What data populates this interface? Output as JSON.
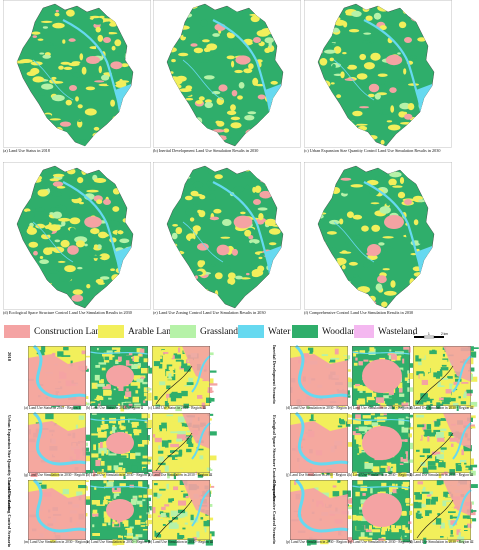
{
  "colors": {
    "construction": "#f4a3a3",
    "arable": "#f2ef5b",
    "grassland": "#b6f2a8",
    "water": "#66d9f0",
    "woodland": "#2fae6b",
    "wasteland": "#f4b8f0"
  },
  "top_maps": [
    {
      "caption": "(a) Land Use Status in 2018"
    },
    {
      "caption": "(b) Inertial Development Land Use Simulation Results in 2030"
    },
    {
      "caption": "(c) Urban Expansion Size Quantity Control Land Use Simulation Results in 2030"
    },
    {
      "caption": "(d) Ecological Space Structure Control Land Use Simulation Results in 2030"
    },
    {
      "caption": "(e) Land Use Zoning Control Land Use Simulation Results in 2030"
    },
    {
      "caption": "(f) Comprehensive Control Land Use Simulation Results in 2030"
    }
  ],
  "legend": [
    {
      "label": "Construction Land",
      "color": "#f4a3a3"
    },
    {
      "label": "Arable Land",
      "color": "#f2ef5b"
    },
    {
      "label": "Grassland",
      "color": "#b6f2a8"
    },
    {
      "label": "Water",
      "color": "#66d9f0"
    },
    {
      "label": "Woodland",
      "color": "#2fae6b"
    },
    {
      "label": "Wasteland",
      "color": "#f4b8f0"
    }
  ],
  "scale": {
    "zero": "0",
    "mid": "1",
    "end": "2 km"
  },
  "side_labels": [
    "2018",
    "Inertial Development Scenario",
    "Urban Expansion Size Quantity Control Scenario",
    "Ecological Space Structure Control Scenario",
    "Land Use Zoning Control Scenario",
    "Comprehensive Control Scenario"
  ],
  "tiles": [
    {
      "caption": "(a) Land Use Status in 2018 - Region Ⅰ"
    },
    {
      "caption": "(b) Land Use Status in 2018 - Region Ⅱ"
    },
    {
      "caption": "(c) Land Use Status in 2018 - Region Ⅲ"
    },
    {
      "caption": "(d) Land Use Simulation in 2030 - Region Ⅰ"
    },
    {
      "caption": "(e) Land Use Simulation in 2030 - Region Ⅱ"
    },
    {
      "caption": "(f) Land Use Simulation in 2030 - Region Ⅲ"
    },
    {
      "caption": "(g) Land Use Simulation in 2030 - Region Ⅰ"
    },
    {
      "caption": "(h) Land Use Simulation in 2030 - Region Ⅱ"
    },
    {
      "caption": "(i) Land Use Simulation in 2030 - Region Ⅲ"
    },
    {
      "caption": "(j) Land Use Simulation in 2030 - Region Ⅰ"
    },
    {
      "caption": "(k) Land Use Simulation in 2030 - Region Ⅱ"
    },
    {
      "caption": "(l) Land Use Simulation in 2030 - Region Ⅲ"
    },
    {
      "caption": "(m) Land Use Simulation in 2030 - Region Ⅰ"
    },
    {
      "caption": "(n) Land Use Simulation in 2030 - Region Ⅱ"
    },
    {
      "caption": "(o) Land Use Simulation in 2030 - Region Ⅲ"
    },
    {
      "caption": "(p) Land Use Simulation in 2030 - Region Ⅰ"
    },
    {
      "caption": "(q) Land Use Simulation in 2030 - Region Ⅱ"
    },
    {
      "caption": "(r) Land Use Simulation in 2030 - Region Ⅲ"
    }
  ]
}
